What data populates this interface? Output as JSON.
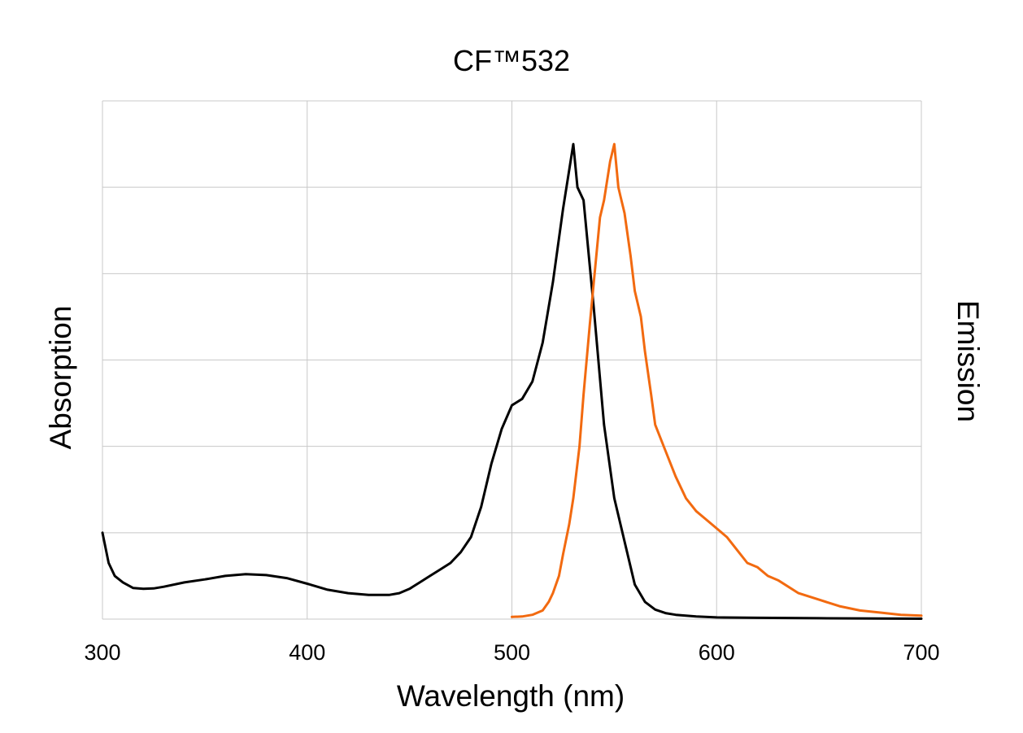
{
  "chart_data": {
    "type": "line",
    "title": "CF™532",
    "xlabel": "Wavelength (nm)",
    "ylabel_left": "Absorption",
    "ylabel_right": "Emission",
    "xlim": [
      300,
      700
    ],
    "ylim": [
      0,
      1.2
    ],
    "xticks": [
      300,
      400,
      500,
      600,
      700
    ],
    "xtick_labels": [
      "300",
      "400",
      "500",
      "600",
      "700"
    ],
    "grid": true,
    "y_tick_labels_shown": false,
    "series": [
      {
        "color": "#000000",
        "x": [
          300,
          303,
          306,
          310,
          315,
          320,
          325,
          330,
          340,
          350,
          360,
          370,
          380,
          390,
          400,
          410,
          420,
          430,
          440,
          445,
          450,
          455,
          460,
          465,
          470,
          475,
          480,
          485,
          490,
          495,
          500,
          505,
          510,
          515,
          520,
          525,
          530,
          532,
          535,
          540,
          545,
          550,
          555,
          560,
          565,
          570,
          575,
          580,
          590,
          600,
          620,
          650,
          700
        ],
        "y": [
          0.2,
          0.13,
          0.1,
          0.085,
          0.072,
          0.07,
          0.071,
          0.075,
          0.085,
          0.092,
          0.1,
          0.104,
          0.102,
          0.095,
          0.082,
          0.068,
          0.06,
          0.056,
          0.056,
          0.06,
          0.07,
          0.085,
          0.1,
          0.115,
          0.13,
          0.155,
          0.19,
          0.26,
          0.36,
          0.44,
          0.495,
          0.51,
          0.55,
          0.64,
          0.78,
          0.95,
          1.1,
          1.0,
          0.97,
          0.72,
          0.45,
          0.28,
          0.18,
          0.08,
          0.04,
          0.022,
          0.014,
          0.01,
          0.006,
          0.004,
          0.003,
          0.002,
          0.001
        ]
      },
      {
        "color": "#f26a10",
        "x": [
          500,
          505,
          510,
          515,
          518,
          520,
          523,
          525,
          528,
          530,
          533,
          535,
          538,
          540,
          543,
          545,
          548,
          550,
          552,
          553,
          555,
          558,
          560,
          563,
          565,
          568,
          570,
          575,
          580,
          583,
          585,
          590,
          595,
          600,
          605,
          610,
          615,
          620,
          625,
          630,
          640,
          650,
          660,
          670,
          680,
          690,
          700
        ],
        "y": [
          0.005,
          0.006,
          0.01,
          0.02,
          0.04,
          0.06,
          0.1,
          0.15,
          0.22,
          0.28,
          0.4,
          0.52,
          0.68,
          0.78,
          0.93,
          0.97,
          1.06,
          1.1,
          1.0,
          0.98,
          0.94,
          0.84,
          0.76,
          0.7,
          0.62,
          0.52,
          0.45,
          0.39,
          0.33,
          0.3,
          0.28,
          0.25,
          0.23,
          0.21,
          0.19,
          0.16,
          0.13,
          0.12,
          0.1,
          0.09,
          0.06,
          0.045,
          0.03,
          0.02,
          0.015,
          0.01,
          0.008
        ]
      }
    ]
  }
}
